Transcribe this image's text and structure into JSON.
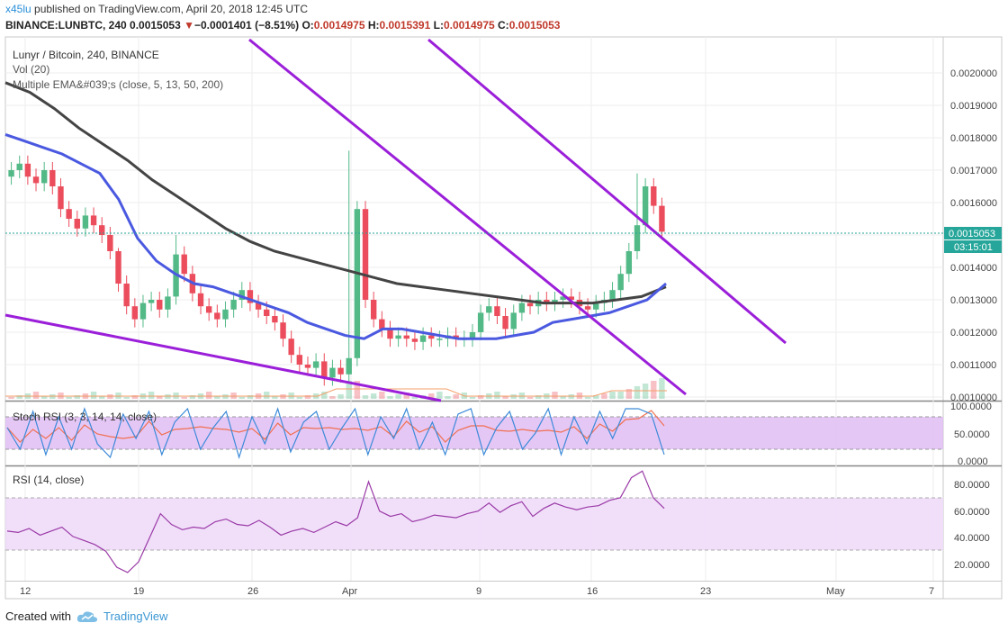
{
  "header": {
    "author": "x45lu",
    "published": "published on TradingView.com, April 20, 2018 12:45 UTC",
    "symbol": "BINANCE:LUNBTC, 240",
    "last": "0.0015053",
    "change_arrow": "▼",
    "change": "−0.0001401 (−8.51%)",
    "o_label": "O:",
    "o": "0.0014975",
    "h_label": "H:",
    "h": "0.0015391",
    "l_label": "L:",
    "l": "0.0014975",
    "c_label": "C:",
    "c": "0.0015053"
  },
  "legend": {
    "title": "Lunyr / Bitcoin, 240, BINANCE",
    "vol": "Vol (20)",
    "ema": "Multiple EMA&#039;s (close, 5, 13, 50, 200)"
  },
  "price_badge": "0.0015053",
  "time_badge": "03:15:01",
  "price_axis": [
    "0.0020000",
    "0.0019000",
    "0.0018000",
    "0.0017000",
    "0.0016000",
    "0.0014000",
    "0.0013000",
    "0.0012000",
    "0.0011000",
    "0.0010000"
  ],
  "stoch_panel": {
    "title": "Stoch RSI (3, 3, 14, 14, close)",
    "axis": [
      "100.0000",
      "50.0000",
      "0.0000"
    ]
  },
  "rsi_panel": {
    "title": "RSI (14, close)",
    "axis": [
      "80.0000",
      "60.0000",
      "40.0000",
      "20.0000"
    ]
  },
  "time_axis": [
    "12",
    "19",
    "26",
    "Apr",
    "9",
    "16",
    "23",
    "May",
    "7"
  ],
  "footer": {
    "created_with": "Created with",
    "brand": "TradingView"
  },
  "colors": {
    "up": "#53b987",
    "down": "#eb4d5c",
    "ema50": "#4a59e0",
    "ema200": "#444444",
    "trendline": "#9b1fd9",
    "stoch_k": "#3c8ad8",
    "stoch_d": "#f07050",
    "rsi": "#9a3aa6",
    "band": "#e0bdf5",
    "current": "#26a69a"
  },
  "chart_data": {
    "type": "line",
    "title": "Lunyr / Bitcoin, 240, BINANCE",
    "xlabel": "",
    "ylabel": "",
    "ylim": [
      0.00099,
      0.00211
    ],
    "x_ticks": [
      "12",
      "19",
      "26",
      "Apr",
      "9",
      "16",
      "23",
      "May",
      "7"
    ],
    "close": [
      0.0017,
      0.00172,
      0.00168,
      0.00166,
      0.0017,
      0.00165,
      0.00158,
      0.00155,
      0.00152,
      0.00156,
      0.00153,
      0.0015,
      0.00145,
      0.00135,
      0.00128,
      0.00124,
      0.00129,
      0.0013,
      0.00127,
      0.00131,
      0.00144,
      0.00138,
      0.00132,
      0.00128,
      0.00126,
      0.00124,
      0.00127,
      0.0013,
      0.00133,
      0.00129,
      0.00127,
      0.00125,
      0.00123,
      0.00118,
      0.00113,
      0.0011,
      0.00109,
      0.00111,
      0.00106,
      0.00109,
      0.00107,
      0.00112,
      0.00158,
      0.0013,
      0.00124,
      0.00121,
      0.00118,
      0.00119,
      0.00118,
      0.00117,
      0.00119,
      0.00118,
      0.00118,
      0.00119,
      0.00118,
      0.00118,
      0.0012,
      0.00126,
      0.00128,
      0.00125,
      0.00121,
      0.00126,
      0.00129,
      0.00128,
      0.0013,
      0.00129,
      0.0013,
      0.00131,
      0.0013,
      0.00128,
      0.00127,
      0.00129,
      0.0013,
      0.00133,
      0.00138,
      0.00145,
      0.00153,
      0.00165,
      0.00159,
      0.00151
    ],
    "series": [
      {
        "name": "EMA 50",
        "values": [
          0.00181,
          0.00179,
          0.00177,
          0.00175,
          0.00172,
          0.00169,
          0.00161,
          0.00149,
          0.00142,
          0.00138,
          0.00135,
          0.00134,
          0.00132,
          0.0013,
          0.00128,
          0.00126,
          0.00123,
          0.00121,
          0.00119,
          0.00118,
          0.00121,
          0.00121,
          0.0012,
          0.00119,
          0.00118,
          0.00118,
          0.00118,
          0.00119,
          0.0012,
          0.00123,
          0.00124,
          0.00125,
          0.00126,
          0.00128,
          0.0013,
          0.00135
        ]
      },
      {
        "name": "EMA 200",
        "values": [
          0.00197,
          0.00194,
          0.00189,
          0.00183,
          0.00178,
          0.00173,
          0.00167,
          0.00162,
          0.00157,
          0.00152,
          0.00148,
          0.00145,
          0.00143,
          0.00141,
          0.00139,
          0.00137,
          0.00135,
          0.00134,
          0.00133,
          0.00132,
          0.00131,
          0.0013,
          0.00129,
          0.00129,
          0.00129,
          0.0013,
          0.00131,
          0.00134
        ]
      },
      {
        "name": "Stoch RSI %K",
        "values": [
          60,
          20,
          90,
          10,
          80,
          20,
          95,
          30,
          5,
          85,
          40,
          90,
          10,
          70,
          95,
          20,
          60,
          90,
          5,
          80,
          30,
          95,
          15,
          70,
          90,
          20,
          60,
          95,
          10,
          80,
          40,
          95,
          20,
          70,
          10,
          85,
          95,
          10,
          60,
          90,
          20,
          50,
          95,
          10,
          80,
          30,
          90,
          40,
          95,
          95,
          85,
          10
        ]
      },
      {
        "name": "RSI",
        "values": [
          45,
          44,
          47,
          42,
          45,
          48,
          41,
          38,
          35,
          30,
          18,
          14,
          22,
          40,
          58,
          50,
          46,
          48,
          47,
          52,
          54,
          50,
          49,
          53,
          48,
          42,
          45,
          47,
          44,
          48,
          52,
          49,
          55,
          82,
          60,
          56,
          58,
          52,
          54,
          57,
          56,
          55,
          58,
          60,
          66,
          59,
          64,
          67,
          56,
          62,
          66,
          63,
          61,
          63,
          64,
          68,
          70,
          85,
          90,
          70,
          62
        ]
      }
    ]
  }
}
